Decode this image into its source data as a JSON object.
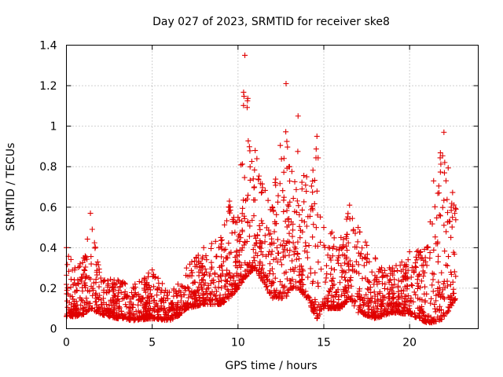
{
  "chart_data": {
    "type": "scatter",
    "title": "Day 027 of 2023, SRMTID for receiver ske8",
    "xlabel": "GPS time / hours",
    "ylabel": "SRMTID / TECUs",
    "xlim": [
      0,
      24
    ],
    "ylim": [
      0,
      1.4
    ],
    "xticks": [
      0,
      5,
      10,
      15,
      20
    ],
    "xtick_labels": [
      "0",
      "5",
      "10",
      "15",
      "20"
    ],
    "yticks": [
      0,
      0.2,
      0.4,
      0.6,
      0.8,
      1,
      1.2,
      1.4
    ],
    "ytick_labels": [
      "0",
      "0.2",
      "0.4",
      "0.6",
      "0.8",
      "1",
      "1.2",
      "1.4"
    ],
    "grid": true,
    "marker": "+",
    "color": "#e00000",
    "series": [
      {
        "name": "ske8",
        "envelope_note": "approximate hourly envelope of the plotted points (hour, typical min, typical max)",
        "envelope": [
          [
            0.0,
            0.06,
            0.4
          ],
          [
            0.5,
            0.06,
            0.3
          ],
          [
            1.0,
            0.07,
            0.35
          ],
          [
            1.4,
            0.1,
            0.57
          ],
          [
            2.0,
            0.07,
            0.25
          ],
          [
            3.0,
            0.05,
            0.24
          ],
          [
            4.0,
            0.04,
            0.22
          ],
          [
            5.0,
            0.05,
            0.29
          ],
          [
            6.0,
            0.04,
            0.18
          ],
          [
            6.5,
            0.06,
            0.22
          ],
          [
            7.0,
            0.1,
            0.3
          ],
          [
            8.0,
            0.12,
            0.4
          ],
          [
            9.0,
            0.12,
            0.45
          ],
          [
            9.5,
            0.15,
            0.63
          ],
          [
            10.0,
            0.2,
            0.55
          ],
          [
            10.4,
            0.25,
            1.35
          ],
          [
            11.0,
            0.3,
            0.88
          ],
          [
            12.0,
            0.15,
            0.6
          ],
          [
            12.8,
            0.15,
            1.21
          ],
          [
            13.0,
            0.2,
            0.8
          ],
          [
            13.5,
            0.2,
            1.05
          ],
          [
            14.0,
            0.15,
            0.75
          ],
          [
            14.6,
            0.05,
            0.95
          ],
          [
            15.0,
            0.1,
            0.5
          ],
          [
            16.0,
            0.1,
            0.45
          ],
          [
            16.5,
            0.15,
            0.61
          ],
          [
            17.0,
            0.08,
            0.5
          ],
          [
            18.0,
            0.05,
            0.35
          ],
          [
            19.0,
            0.08,
            0.3
          ],
          [
            20.0,
            0.07,
            0.38
          ],
          [
            21.0,
            0.03,
            0.4
          ],
          [
            21.4,
            0.03,
            0.73
          ],
          [
            22.0,
            0.05,
            0.97
          ],
          [
            22.7,
            0.15,
            0.59
          ]
        ]
      }
    ]
  }
}
